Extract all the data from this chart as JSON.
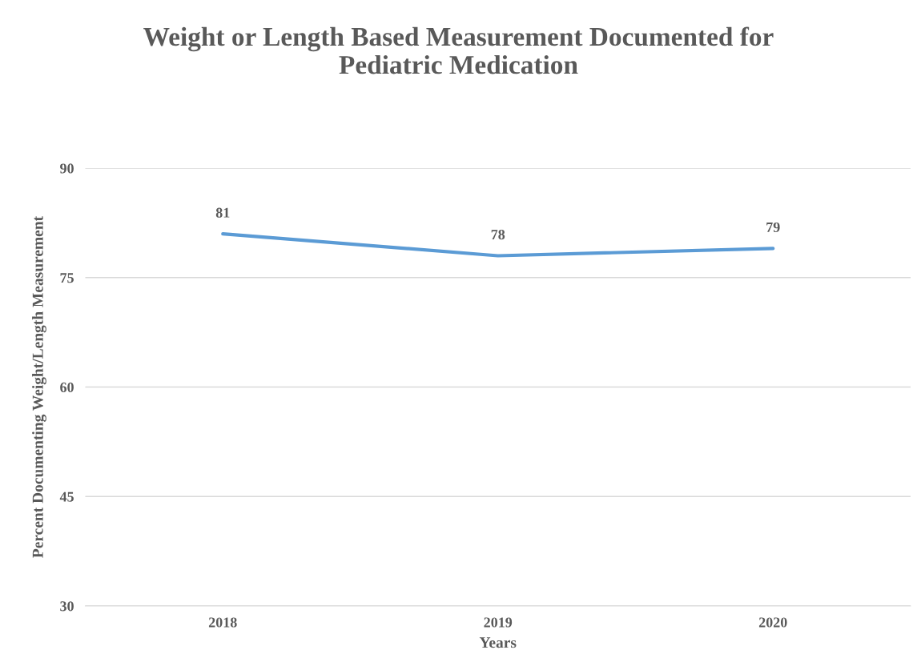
{
  "chart_data": {
    "type": "line",
    "title": "Weight or Length Based Measurement Documented for\nPediatric Medication",
    "xlabel": "Years",
    "ylabel": "Percent Documenting Weight/Length Measurement",
    "categories": [
      "2018",
      "2019",
      "2020"
    ],
    "series": [
      {
        "color": "#5b9bd5",
        "values": [
          81,
          78,
          79
        ]
      }
    ],
    "ylim": [
      30,
      90
    ],
    "yticks": [
      30,
      45,
      60,
      75,
      90
    ],
    "grid": "y",
    "data_labels": true
  }
}
